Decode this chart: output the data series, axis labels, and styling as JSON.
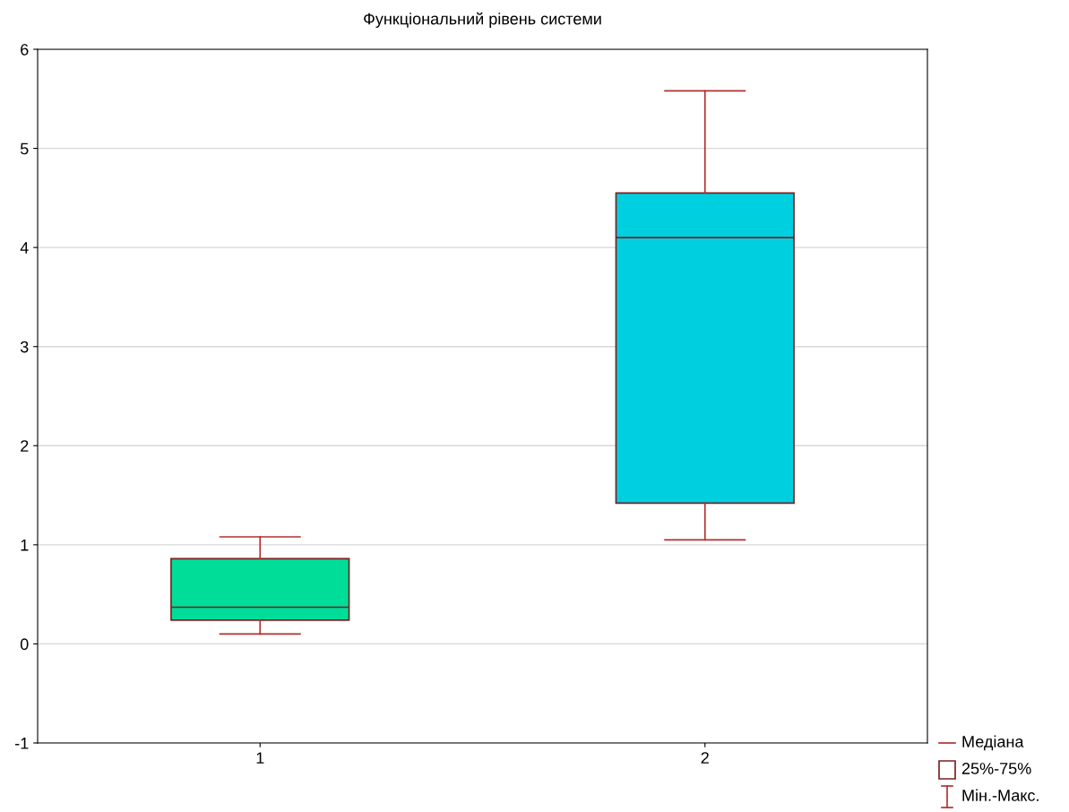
{
  "chart_data": {
    "type": "box",
    "title": "Функціональний рівень системи",
    "categories": [
      "1",
      "2"
    ],
    "boxes": [
      {
        "low": 0.1,
        "q1": 0.24,
        "median": 0.37,
        "q3": 0.86,
        "high": 1.08
      },
      {
        "low": 1.05,
        "q1": 1.42,
        "median": 4.1,
        "q3": 4.55,
        "high": 5.58
      }
    ],
    "colors": [
      "#00dd99",
      "#00cfe0"
    ],
    "ylim": [
      -1,
      6
    ],
    "yticks": [
      -1,
      0,
      1,
      2,
      3,
      4,
      5,
      6
    ],
    "grid": "y",
    "annotations": [
      "Медіана",
      "25%-75%",
      "Мін.-Макс."
    ]
  }
}
